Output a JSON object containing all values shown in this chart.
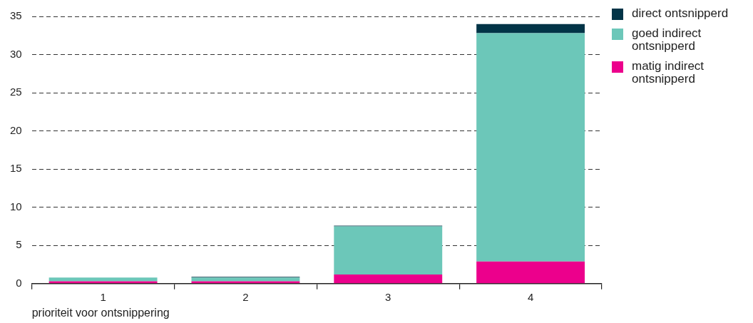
{
  "chart_data": {
    "type": "bar",
    "stacked": true,
    "xlabel": "prioriteit voor ontsnippering",
    "categories": [
      "1",
      "2",
      "3",
      "4"
    ],
    "series": [
      {
        "name": "matig indirect ontsnipperd",
        "color": "#ec008c",
        "values": [
          0.3,
          0.3,
          1.2,
          2.9
        ]
      },
      {
        "name": "goed indirect ontsnipperd",
        "color": "#6cc7b9",
        "values": [
          0.5,
          0.5,
          6.3,
          29.9
        ]
      },
      {
        "name": "direct ontsnipperd",
        "color": "#023447",
        "values": [
          0,
          0.1,
          0.1,
          1.2
        ]
      }
    ],
    "ylim": [
      0,
      35
    ],
    "yticks": [
      0,
      5,
      10,
      15,
      20,
      25,
      30,
      35
    ],
    "grid": "y",
    "legend": "top right"
  }
}
